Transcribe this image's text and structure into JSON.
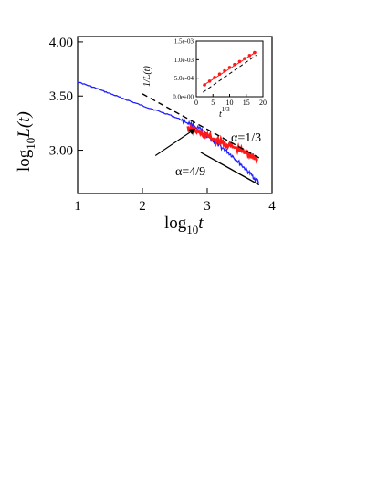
{
  "chart_data": [
    {
      "type": "line",
      "xlabel_base": "log",
      "xlabel_sub": "10",
      "xlabel_var": "t",
      "ylabel_base": "log",
      "ylabel_sub": "10",
      "ylabel_var": "L(t)",
      "xlim": [
        1,
        4
      ],
      "ylim": [
        2.6,
        4.05
      ],
      "xticks": [
        "1",
        "2",
        "3",
        "4"
      ],
      "yticks": [
        "3.00",
        "3.50",
        "4.00"
      ],
      "xtick_values": [
        1,
        2,
        3,
        4
      ],
      "ytick_values": [
        3.0,
        3.5,
        4.0
      ],
      "grid": false,
      "series": [
        {
          "color": "#2020ff",
          "x": [
            1.0,
            1.2,
            1.4,
            1.6,
            1.8,
            2.0,
            2.2,
            2.4,
            2.6,
            2.75,
            2.9,
            3.0,
            3.1,
            3.2,
            3.3,
            3.4,
            3.5,
            3.6,
            3.7,
            3.8
          ],
          "y": [
            3.63,
            3.59,
            3.545,
            3.5,
            3.455,
            3.41,
            3.37,
            3.33,
            3.28,
            3.24,
            3.19,
            3.13,
            3.08,
            3.035,
            2.99,
            2.94,
            2.88,
            2.82,
            2.76,
            2.7
          ]
        },
        {
          "color": "#ff1a1a",
          "x": [
            2.7,
            2.85,
            3.0,
            3.15,
            3.3,
            3.45,
            3.6,
            3.7,
            3.78
          ],
          "y": [
            3.2,
            3.17,
            3.13,
            3.09,
            3.05,
            3.015,
            2.975,
            2.945,
            2.92
          ]
        }
      ],
      "reference_lines": [
        {
          "label": "α=1/3",
          "dash": true,
          "x": [
            2.0,
            3.8
          ],
          "y": [
            3.52,
            2.93
          ]
        },
        {
          "label": "α=4/9",
          "dash": false,
          "x": [
            2.9,
            3.8
          ],
          "y": [
            2.98,
            2.68
          ]
        }
      ],
      "arrow": {
        "from": [
          2.2,
          2.95
        ],
        "to": [
          2.82,
          3.2
        ]
      }
    },
    {
      "type": "scatter",
      "xlabel_var": "t",
      "xlabel_sup": "1/3",
      "ylabel": "1/L(t)",
      "xlim": [
        0,
        20
      ],
      "ylim": [
        0,
        0.0015
      ],
      "xticks": [
        "0",
        "5",
        "10",
        "15",
        "20"
      ],
      "yticks": [
        "0.0e+00",
        "5.0e-04",
        "1.0e-03",
        "1.5e-03"
      ],
      "xtick_values": [
        0,
        5,
        10,
        15,
        20
      ],
      "ytick_values": [
        0,
        0.0005,
        0.001,
        0.0015
      ],
      "grid": false,
      "series": [
        {
          "color": "#ff1a1a",
          "x": [
            2.5,
            4,
            5.5,
            7,
            8.5,
            10,
            11.5,
            13,
            14.5,
            16,
            17.5
          ],
          "y": [
            0.00032,
            0.00042,
            0.00052,
            0.00061,
            0.0007,
            0.00079,
            0.00087,
            0.00095,
            0.00103,
            0.00111,
            0.00119
          ]
        }
      ],
      "reference_lines": [
        {
          "color": "#ff1a1a",
          "dash": false,
          "x": [
            2,
            18
          ],
          "y": [
            0.0003,
            0.00121
          ]
        },
        {
          "color": "#000000",
          "dash": true,
          "x": [
            2,
            18
          ],
          "y": [
            0.00012,
            0.00112
          ]
        }
      ]
    }
  ],
  "annotations": {
    "alpha_1_3": "α=1/3",
    "alpha_4_9": "α=4/9"
  }
}
